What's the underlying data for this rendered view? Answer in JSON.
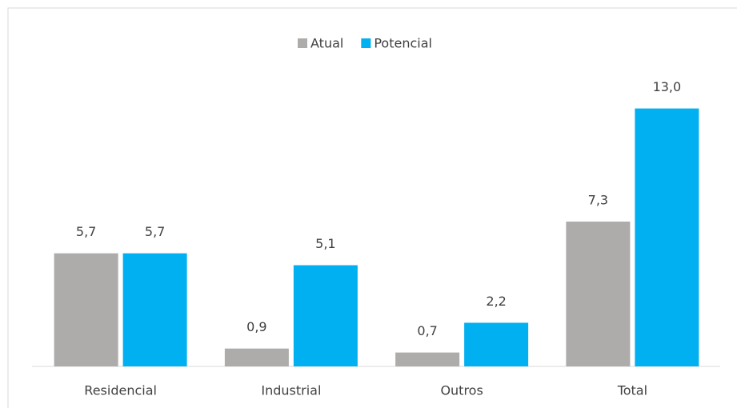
{
  "chart_data": {
    "type": "bar",
    "categories": [
      "Residencial",
      "Industrial",
      "Outros",
      "Total"
    ],
    "series": [
      {
        "name": "Atual",
        "color": "#aeabab",
        "values": [
          5.7,
          0.9,
          0.7,
          7.3
        ],
        "value_labels": [
          "5,7",
          "0,9",
          "0,7",
          "7,3"
        ]
      },
      {
        "name": "Potencial",
        "color": "#00b0f0",
        "values": [
          5.7,
          5.1,
          2.2,
          13.0
        ],
        "value_labels": [
          "5,7",
          "5,1",
          "2,2",
          "13,0"
        ]
      }
    ],
    "legend": "top"
  }
}
